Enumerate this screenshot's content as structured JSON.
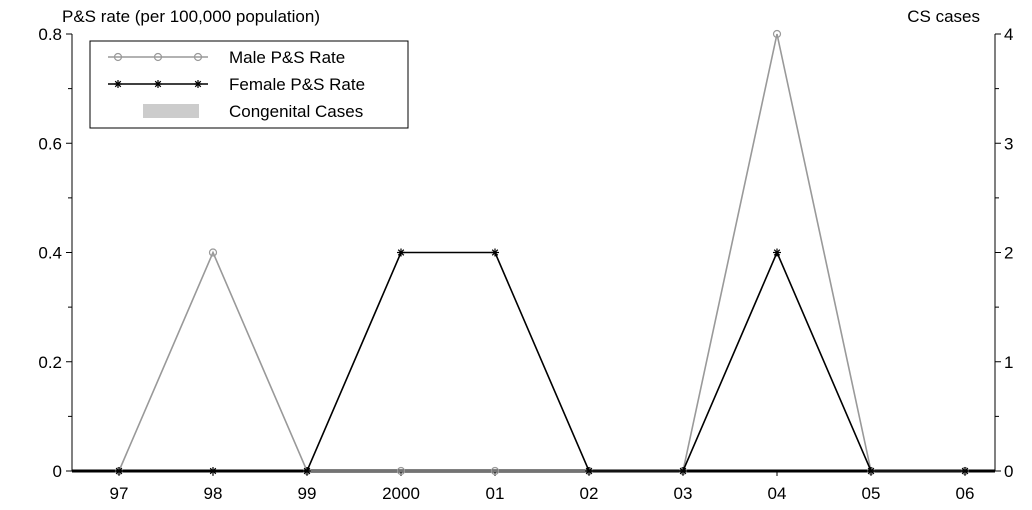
{
  "chart_data": {
    "type": "line",
    "left_axis_label": "P&S rate (per 100,000 population)",
    "right_axis_label": "CS cases",
    "categories": [
      "97",
      "98",
      "99",
      "2000",
      "01",
      "02",
      "03",
      "04",
      "05",
      "06"
    ],
    "ylim": [
      0,
      0.8
    ],
    "y_ticks": [
      "0",
      "0.2",
      "0.4",
      "0.6",
      "0.8"
    ],
    "y2lim": [
      0,
      4
    ],
    "y2_ticks": [
      "0",
      "1",
      "2",
      "3",
      "4"
    ],
    "series": [
      {
        "name": "Male P&S Rate",
        "axis": "left",
        "color": "#999999",
        "marker": "circle",
        "values": [
          0,
          0.4,
          0,
          0,
          0,
          0,
          0,
          0.8,
          0,
          0
        ]
      },
      {
        "name": "Female P&S Rate",
        "axis": "left",
        "color": "#000000",
        "marker": "star",
        "values": [
          0,
          0,
          0,
          0.4,
          0.4,
          0,
          0,
          0.4,
          0,
          0
        ]
      },
      {
        "name": "Congenital Cases",
        "axis": "right",
        "type": "bar",
        "color": "#cccccc",
        "values": [
          0,
          0,
          0,
          0,
          0,
          0,
          0,
          0,
          0,
          0
        ]
      }
    ],
    "legend_position": "top-left",
    "grid": false
  }
}
